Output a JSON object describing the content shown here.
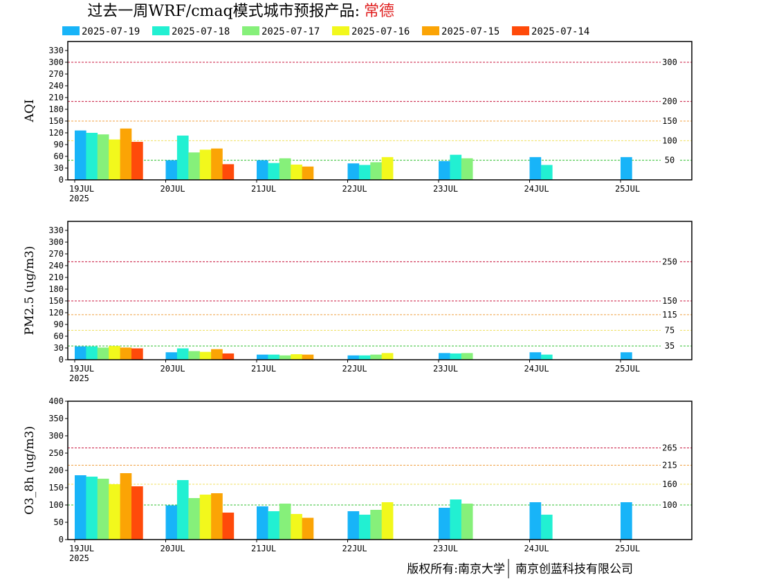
{
  "title": {
    "main": "过去一周WRF/cmaq模式城市预报产品:",
    "city": "常德"
  },
  "copyright": {
    "left": "版权所有:南京大学",
    "right": "南京创蓝科技有限公司"
  },
  "colors": {
    "series": [
      "#18b4f8",
      "#22f0d2",
      "#86f07a",
      "#f2f81c",
      "#fba405",
      "#ff4a0a"
    ],
    "ref_lines": {
      "red": "#c8143c",
      "orange": "#f0a040",
      "yellow": "#f0e060",
      "green": "#30c030"
    }
  },
  "chart_data": [
    {
      "type": "bar",
      "panel": "aqi",
      "ylabel": "AQI",
      "ylim": [
        0,
        340
      ],
      "yticks": [
        0,
        30,
        60,
        90,
        120,
        150,
        180,
        210,
        240,
        270,
        300,
        330
      ],
      "grid": false,
      "legend_position": "top",
      "x_ticks": [
        "19JUL",
        "20JUL",
        "21JUL",
        "22JUL",
        "23JUL",
        "24JUL",
        "25JUL"
      ],
      "x_sublabel": "2025",
      "ref_lines": [
        {
          "value": 300,
          "label": "300",
          "color": "red"
        },
        {
          "value": 200,
          "label": "200",
          "color": "red"
        },
        {
          "value": 150,
          "label": "150",
          "color": "orange"
        },
        {
          "value": 100,
          "label": "100",
          "color": "yellow"
        },
        {
          "value": 50,
          "label": "50",
          "color": "green"
        }
      ],
      "series": [
        {
          "name": "2025-07-19",
          "values": [
            126,
            50,
            50,
            42,
            48,
            58,
            58
          ]
        },
        {
          "name": "2025-07-18",
          "values": [
            120,
            113,
            43,
            38,
            64,
            38,
            null
          ]
        },
        {
          "name": "2025-07-17",
          "values": [
            116,
            70,
            55,
            45,
            55,
            null,
            null
          ]
        },
        {
          "name": "2025-07-16",
          "values": [
            103,
            77,
            39,
            58,
            null,
            null,
            null
          ]
        },
        {
          "name": "2025-07-15",
          "values": [
            131,
            80,
            34,
            null,
            null,
            null,
            null
          ]
        },
        {
          "name": "2025-07-14",
          "values": [
            97,
            40,
            null,
            null,
            null,
            null,
            null
          ]
        }
      ]
    },
    {
      "type": "bar",
      "panel": "pm25",
      "ylabel": "PM2.5 (ug/m3)",
      "ylim": [
        0,
        340
      ],
      "yticks": [
        0,
        30,
        60,
        90,
        120,
        150,
        180,
        210,
        240,
        270,
        300,
        330
      ],
      "grid": false,
      "x_ticks": [
        "19JUL",
        "20JUL",
        "21JUL",
        "22JUL",
        "23JUL",
        "24JUL",
        "25JUL"
      ],
      "x_sublabel": "2025",
      "ref_lines": [
        {
          "value": 250,
          "label": "250",
          "color": "red"
        },
        {
          "value": 150,
          "label": "150",
          "color": "red"
        },
        {
          "value": 115,
          "label": "115",
          "color": "orange"
        },
        {
          "value": 75,
          "label": "75",
          "color": "yellow"
        },
        {
          "value": 35,
          "label": "35",
          "color": "green"
        }
      ],
      "series": [
        {
          "name": "2025-07-19",
          "values": [
            34,
            19,
            13,
            11,
            17,
            19,
            19
          ]
        },
        {
          "name": "2025-07-18",
          "values": [
            34,
            29,
            13,
            11,
            16,
            13,
            null
          ]
        },
        {
          "name": "2025-07-17",
          "values": [
            31,
            22,
            11,
            13,
            17,
            null,
            null
          ]
        },
        {
          "name": "2025-07-16",
          "values": [
            35,
            20,
            14,
            17,
            null,
            null,
            null
          ]
        },
        {
          "name": "2025-07-15",
          "values": [
            31,
            27,
            13,
            null,
            null,
            null,
            null
          ]
        },
        {
          "name": "2025-07-14",
          "values": [
            29,
            16,
            null,
            null,
            null,
            null,
            null
          ]
        }
      ]
    },
    {
      "type": "bar",
      "panel": "o3",
      "ylabel": "O3_8h (ug/m3)",
      "ylim": [
        0,
        400
      ],
      "yticks": [
        0,
        50,
        100,
        150,
        200,
        250,
        300,
        350,
        400
      ],
      "grid": false,
      "x_ticks": [
        "19JUL",
        "20JUL",
        "21JUL",
        "22JUL",
        "23JUL",
        "24JUL",
        "25JUL"
      ],
      "x_sublabel": "2025",
      "ref_lines": [
        {
          "value": 265,
          "label": "265",
          "color": "red"
        },
        {
          "value": 215,
          "label": "215",
          "color": "orange"
        },
        {
          "value": 160,
          "label": "160",
          "color": "yellow"
        },
        {
          "value": 100,
          "label": "100",
          "color": "green"
        }
      ],
      "series": [
        {
          "name": "2025-07-19",
          "values": [
            186,
            99,
            96,
            82,
            92,
            108,
            108
          ]
        },
        {
          "name": "2025-07-18",
          "values": [
            182,
            172,
            82,
            72,
            116,
            72,
            null
          ]
        },
        {
          "name": "2025-07-17",
          "values": [
            176,
            120,
            104,
            86,
            104,
            null,
            null
          ]
        },
        {
          "name": "2025-07-16",
          "values": [
            160,
            130,
            74,
            108,
            null,
            null,
            null
          ]
        },
        {
          "name": "2025-07-15",
          "values": [
            192,
            134,
            63,
            null,
            null,
            null,
            null
          ]
        },
        {
          "name": "2025-07-14",
          "values": [
            154,
            78,
            null,
            null,
            null,
            null,
            null
          ]
        }
      ]
    }
  ]
}
